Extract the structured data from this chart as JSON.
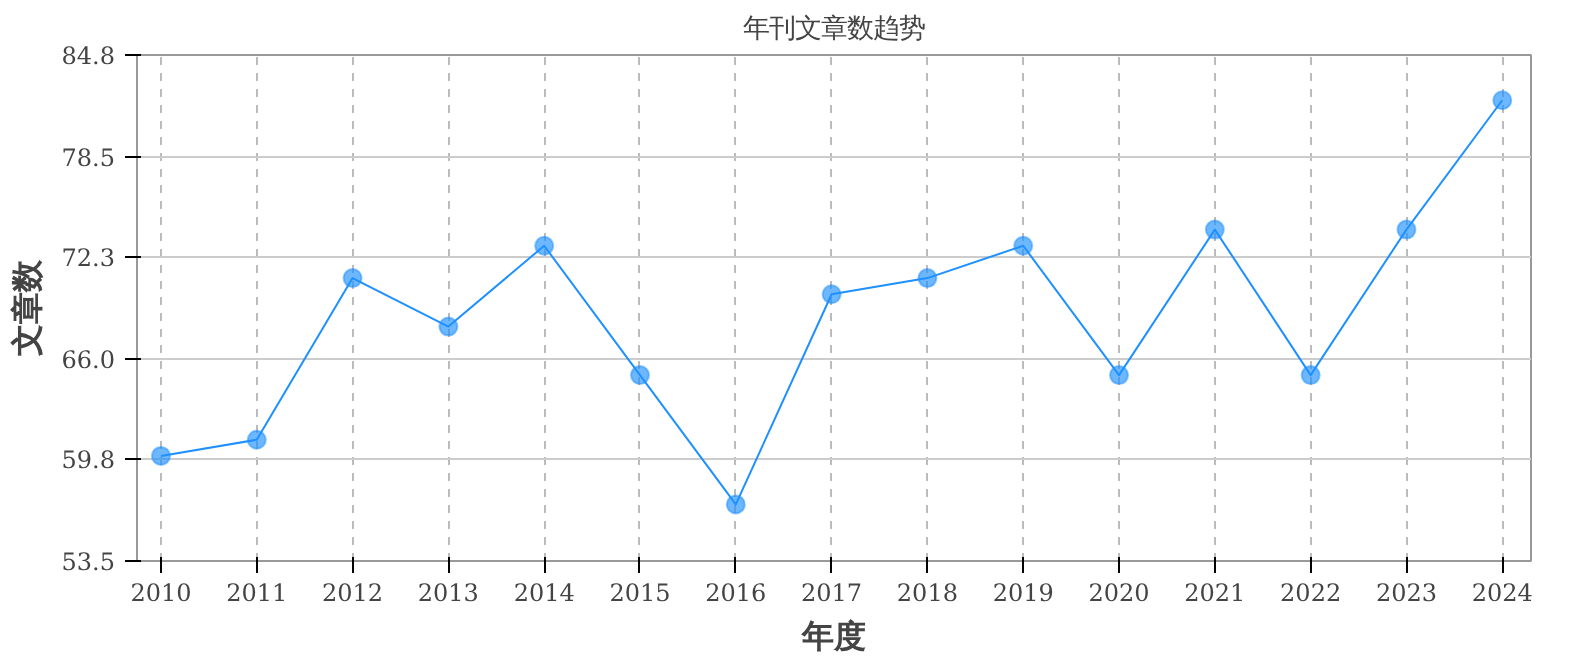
{
  "chart_data": {
    "type": "line",
    "title": "年刊文章数趋势",
    "xlabel": "年度",
    "ylabel": "文章数",
    "categories": [
      "2010",
      "2011",
      "2012",
      "2013",
      "2014",
      "2015",
      "2016",
      "2017",
      "2018",
      "2019",
      "2020",
      "2021",
      "2022",
      "2023",
      "2024"
    ],
    "series": [
      {
        "color": "#1e90ff",
        "values": [
          60,
          61,
          71,
          68,
          73,
          65,
          57,
          70,
          71,
          73,
          65,
          74,
          65,
          74,
          82
        ]
      }
    ],
    "ylim": [
      53.5,
      84.8
    ],
    "yticks": [
      53.5,
      59.8,
      {
        "value": 66,
        "label": "66.0"
      },
      72.3,
      78.5,
      84.8
    ],
    "grid": true,
    "marker": "circle",
    "line_style": "solid"
  }
}
